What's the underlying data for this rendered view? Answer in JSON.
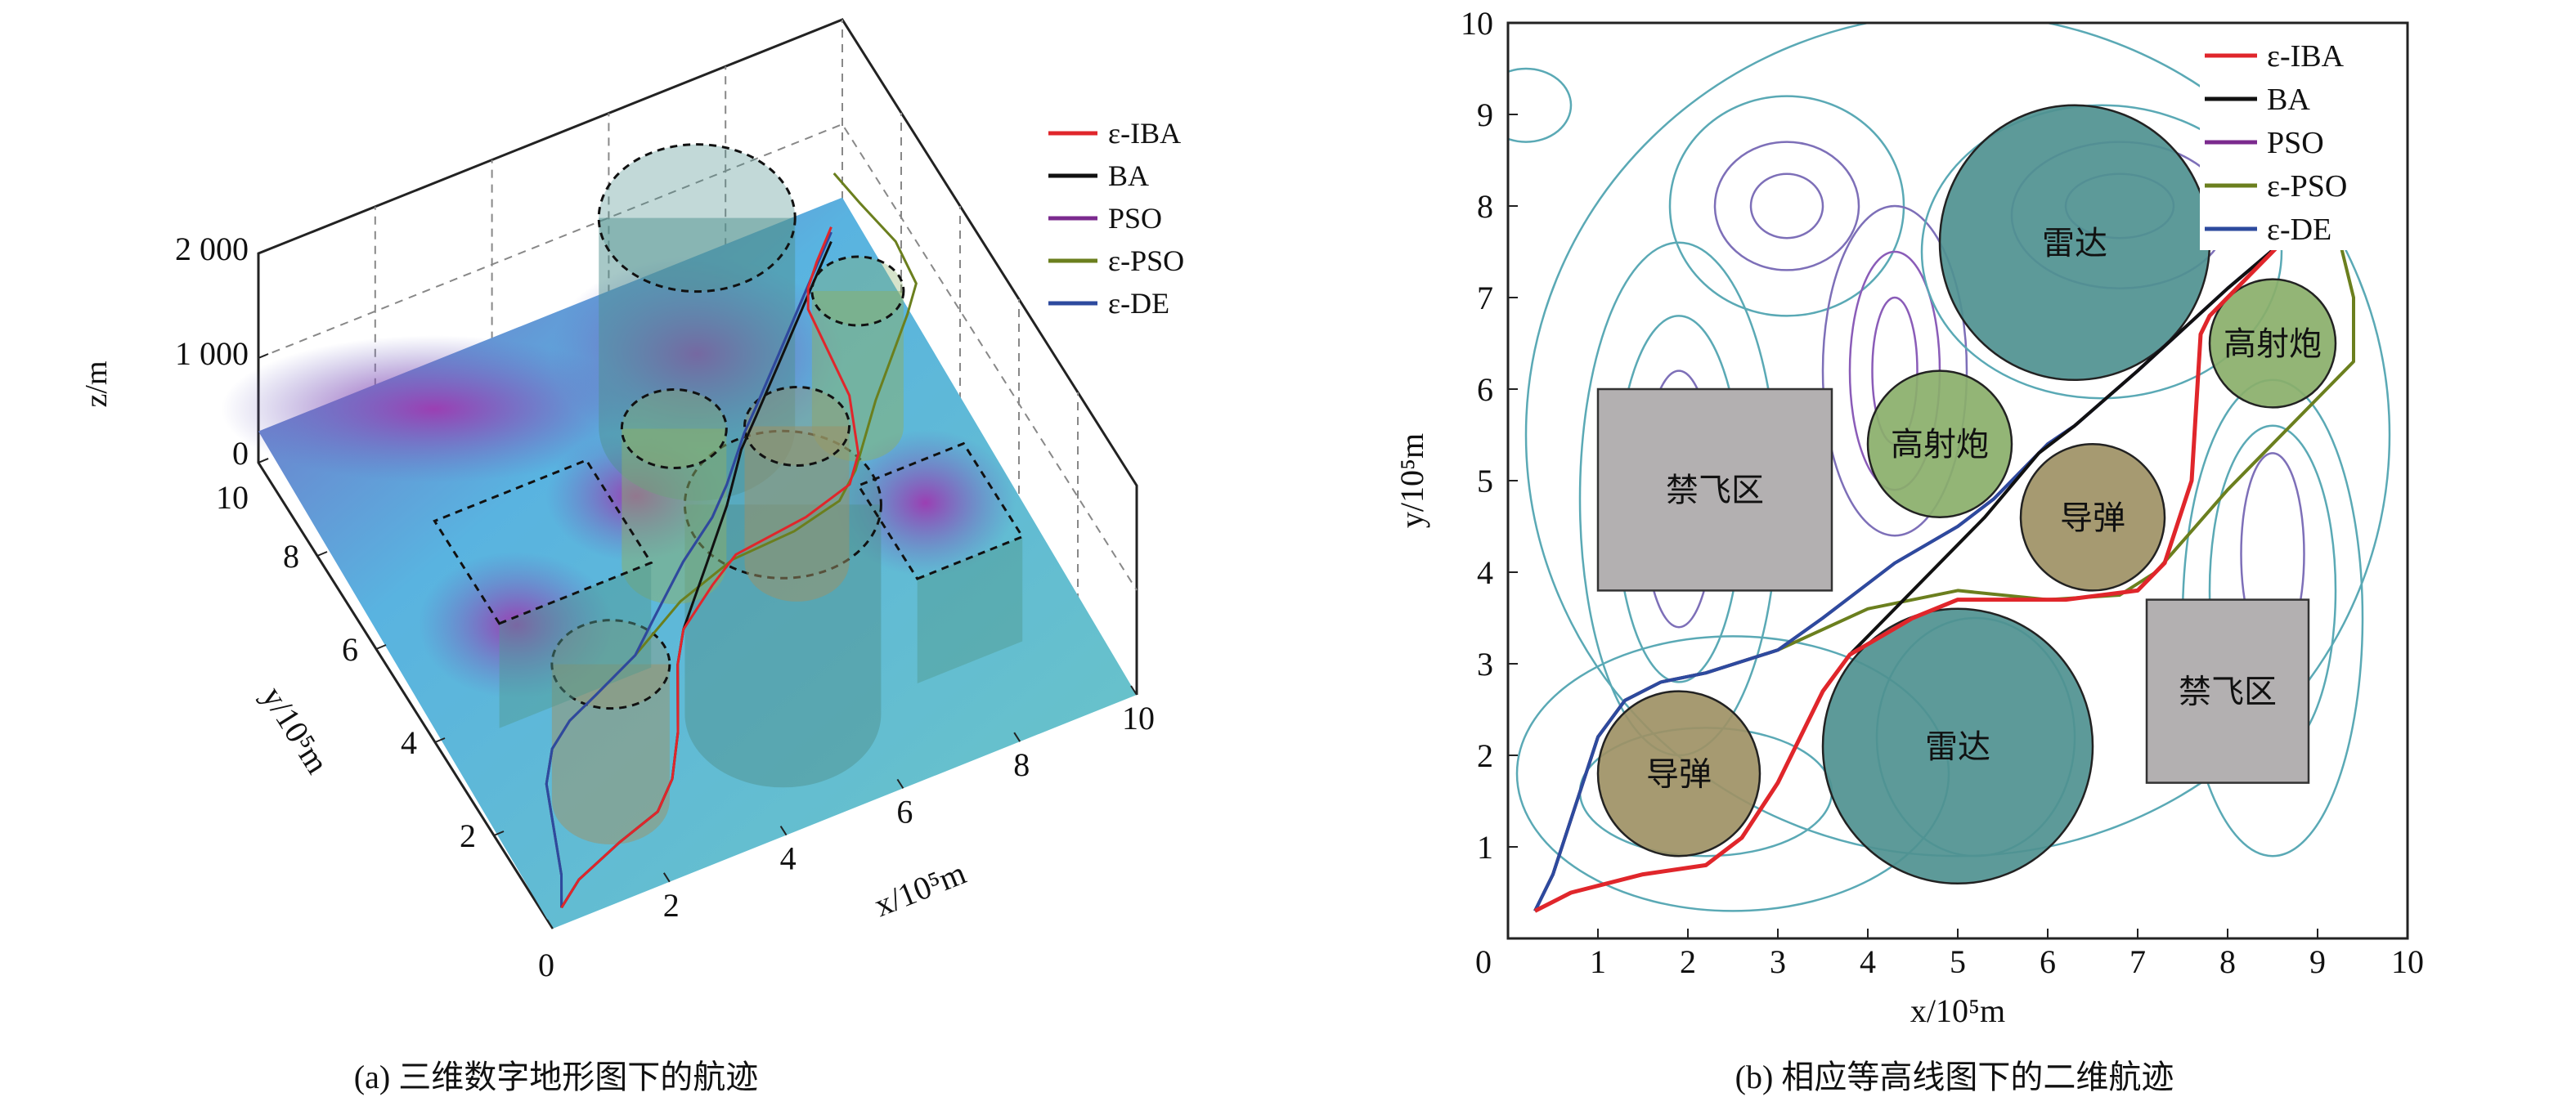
{
  "captions": {
    "a": "(a) 三维数字地形图下的航迹",
    "b": "(b) 相应等高线图下的二维航迹"
  },
  "legend": [
    {
      "label": "ε-IBA",
      "color": "#e0262b"
    },
    {
      "label": "BA",
      "color": "#111111"
    },
    {
      "label": "PSO",
      "color": "#7b2a8e"
    },
    {
      "label": "ε-PSO",
      "color": "#6b7f1e"
    },
    {
      "label": "ε-DE",
      "color": "#2d4a9e"
    }
  ],
  "chart_data": [
    {
      "type": "surface3d",
      "title": "(a) 三维数字地形图下的航迹",
      "xlabel": "x/10⁵m",
      "ylabel": "y/10⁵m",
      "zlabel": "z/m",
      "xlim": [
        0,
        10
      ],
      "ylim": [
        0,
        10
      ],
      "zlim": [
        0,
        2000
      ],
      "xticks": [
        "0",
        "2",
        "4",
        "6",
        "8",
        "10"
      ],
      "yticks": [
        "2",
        "4",
        "6",
        "8",
        "10"
      ],
      "zticks": [
        "0",
        "1 000",
        "2 000"
      ]
    },
    {
      "type": "line",
      "title": "(b) 相应等高线图下的二维航迹",
      "xlabel": "x/10⁵m",
      "ylabel": "y/10⁵m",
      "xlim": [
        0,
        10
      ],
      "ylim": [
        0,
        10
      ],
      "xticks": [
        "0",
        "1",
        "2",
        "3",
        "4",
        "5",
        "6",
        "7",
        "8",
        "9",
        "10"
      ],
      "yticks": [
        "1",
        "2",
        "3",
        "4",
        "5",
        "6",
        "7",
        "8",
        "9",
        "10"
      ],
      "legend_position": "top-right",
      "obstacles": [
        {
          "type": "circle",
          "label": "雷达",
          "cx": 6.3,
          "cy": 7.6,
          "r": 1.5,
          "color": "#4f9190"
        },
        {
          "type": "circle",
          "label": "雷达",
          "cx": 5.0,
          "cy": 2.1,
          "r": 1.5,
          "color": "#4f9190"
        },
        {
          "type": "circle",
          "label": "高射炮",
          "cx": 4.8,
          "cy": 5.4,
          "r": 0.8,
          "color": "#8aaf6a"
        },
        {
          "type": "circle",
          "label": "高射炮",
          "cx": 8.5,
          "cy": 6.5,
          "r": 0.7,
          "color": "#8aaf6a"
        },
        {
          "type": "circle",
          "label": "导弹",
          "cx": 1.9,
          "cy": 1.8,
          "r": 0.9,
          "color": "#9e9165"
        },
        {
          "type": "circle",
          "label": "导弹",
          "cx": 6.5,
          "cy": 4.6,
          "r": 0.8,
          "color": "#9e9165"
        },
        {
          "type": "rect",
          "label": "禁飞区",
          "x0": 1.0,
          "y0": 3.8,
          "x1": 3.6,
          "y1": 6.0,
          "color": "#b3b0b1"
        },
        {
          "type": "rect",
          "label": "禁飞区",
          "x0": 7.1,
          "y0": 1.7,
          "x1": 8.9,
          "y1": 3.7,
          "color": "#b3b0b1"
        }
      ],
      "series": [
        {
          "name": "ε-PSO",
          "points": [
            [
              0.3,
              0.3
            ],
            [
              0.5,
              0.7
            ],
            [
              1,
              2.2
            ],
            [
              1.3,
              2.6
            ],
            [
              1.7,
              2.8
            ],
            [
              2.2,
              2.9
            ],
            [
              3,
              3.15
            ],
            [
              4,
              3.6
            ],
            [
              5,
              3.8
            ],
            [
              6,
              3.7
            ],
            [
              6.8,
              3.75
            ],
            [
              7.2,
              4
            ],
            [
              8,
              4.9
            ],
            [
              9.1,
              6
            ],
            [
              9.4,
              6.3
            ],
            [
              9.4,
              7
            ],
            [
              9.2,
              7.8
            ],
            [
              9.1,
              8.5
            ]
          ]
        },
        {
          "name": "PSO",
          "points": [
            [
              0.3,
              0.3
            ],
            [
              0.5,
              0.7
            ],
            [
              1,
              2.2
            ],
            [
              1.3,
              2.6
            ],
            [
              1.7,
              2.8
            ],
            [
              2.2,
              2.9
            ],
            [
              3,
              3.15
            ],
            [
              3.5,
              3.5
            ],
            [
              4.3,
              4.1
            ],
            [
              5,
              4.5
            ],
            [
              5.4,
              4.8
            ],
            [
              6,
              5.4
            ],
            [
              6.3,
              5.6
            ],
            [
              7,
              6.2
            ],
            [
              8,
              7.1
            ],
            [
              8.6,
              7.6
            ]
          ]
        },
        {
          "name": "ε-DE",
          "points": [
            [
              0.3,
              0.3
            ],
            [
              0.5,
              0.7
            ],
            [
              1,
              2.2
            ],
            [
              1.3,
              2.6
            ],
            [
              1.7,
              2.8
            ],
            [
              2.2,
              2.9
            ],
            [
              3,
              3.15
            ],
            [
              3.5,
              3.5
            ],
            [
              4.3,
              4.1
            ],
            [
              5,
              4.5
            ],
            [
              5.4,
              4.8
            ],
            [
              6,
              5.4
            ],
            [
              6.3,
              5.6
            ],
            [
              7,
              6.2
            ],
            [
              8,
              7.1
            ],
            [
              8.6,
              7.6
            ]
          ]
        },
        {
          "name": "BA",
          "points": [
            [
              0.3,
              0.3
            ],
            [
              0.7,
              0.5
            ],
            [
              1.5,
              0.7
            ],
            [
              2.2,
              0.8
            ],
            [
              2.6,
              1.1
            ],
            [
              3,
              1.7
            ],
            [
              3.5,
              2.7
            ],
            [
              3.8,
              3.1
            ],
            [
              4.6,
              3.9
            ],
            [
              5.3,
              4.6
            ],
            [
              5.9,
              5.3
            ],
            [
              6.3,
              5.6
            ],
            [
              7,
              6.2
            ],
            [
              8,
              7.1
            ],
            [
              8.6,
              7.6
            ]
          ]
        },
        {
          "name": "ε-IBA",
          "points": [
            [
              0.3,
              0.3
            ],
            [
              0.7,
              0.5
            ],
            [
              1.5,
              0.7
            ],
            [
              2.2,
              0.8
            ],
            [
              2.6,
              1.1
            ],
            [
              3,
              1.7
            ],
            [
              3.5,
              2.7
            ],
            [
              3.8,
              3.1
            ],
            [
              4.5,
              3.5
            ],
            [
              5,
              3.7
            ],
            [
              6.2,
              3.7
            ],
            [
              7,
              3.8
            ],
            [
              7.3,
              4.1
            ],
            [
              7.6,
              5
            ],
            [
              7.7,
              6.6
            ],
            [
              7.8,
              6.8
            ],
            [
              8.1,
              7.1
            ],
            [
              8.6,
              7.6
            ]
          ]
        }
      ]
    }
  ]
}
